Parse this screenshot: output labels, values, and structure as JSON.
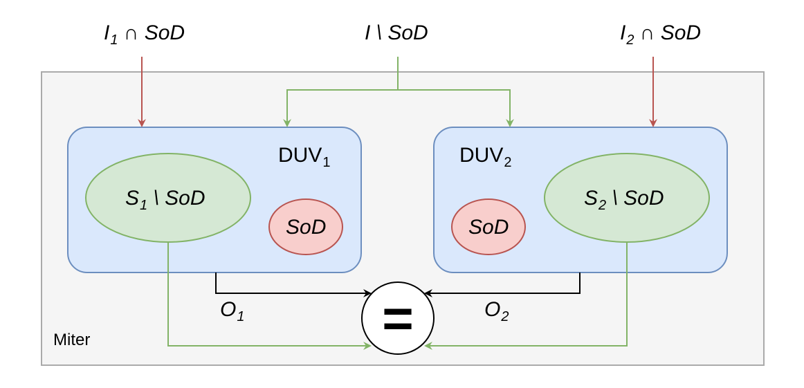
{
  "inputs": {
    "left": {
      "var": "I",
      "sub": "1",
      "rest": " ∩ SoD"
    },
    "middle": {
      "text": "I \\ SoD"
    },
    "right": {
      "var": "I",
      "sub": "2",
      "rest": " ∩ SoD"
    }
  },
  "miter": {
    "label": "Miter"
  },
  "duv1": {
    "name": "DUV",
    "sub": "1",
    "state": {
      "var": "S",
      "sub": "1",
      "rest": " \\ SoD"
    },
    "sod": "SoD",
    "output": {
      "var": "O",
      "sub": "1"
    }
  },
  "duv2": {
    "name": "DUV",
    "sub": "2",
    "state": {
      "var": "S",
      "sub": "2",
      "rest": " \\ SoD"
    },
    "sod": "SoD",
    "output": {
      "var": "O",
      "sub": "2"
    }
  },
  "comparator": {
    "symbol": "="
  },
  "colors": {
    "miter_fill": "#f5f5f5",
    "miter_stroke": "#aaaaaa",
    "duv_fill": "#dae8fc",
    "duv_stroke": "#6c8ebf",
    "state_fill": "#d5e8d4",
    "state_stroke": "#82b366",
    "sod_fill": "#f8cecc",
    "sod_stroke": "#b85450",
    "green_line": "#82b366",
    "red_line": "#b85450",
    "black_line": "#000000"
  }
}
